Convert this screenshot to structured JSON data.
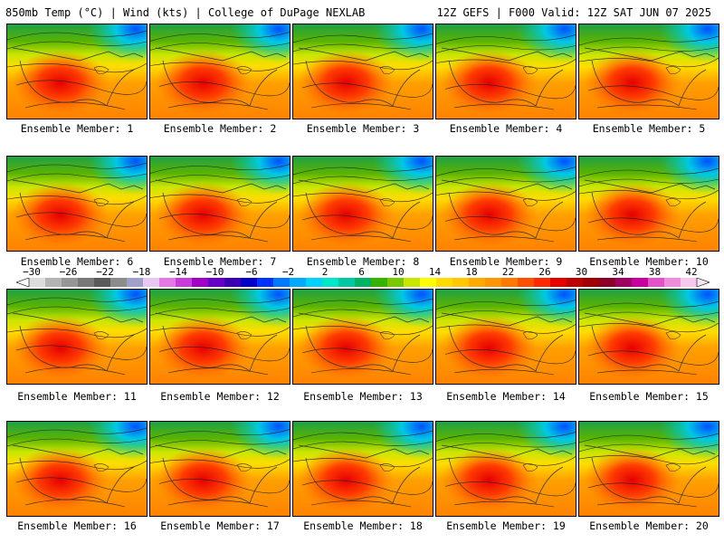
{
  "header": {
    "left_title": "850mb Temp (°C) | Wind (kts) | College of DuPage NEXLAB",
    "right_title": "12Z GEFS | F000 Valid: 12Z SAT JUN 07 2025"
  },
  "panels": [
    {
      "label": "Ensemble Member: 1"
    },
    {
      "label": "Ensemble Member: 2"
    },
    {
      "label": "Ensemble Member: 3"
    },
    {
      "label": "Ensemble Member: 4"
    },
    {
      "label": "Ensemble Member: 5"
    },
    {
      "label": "Ensemble Member: 6"
    },
    {
      "label": "Ensemble Member: 7"
    },
    {
      "label": "Ensemble Member: 8"
    },
    {
      "label": "Ensemble Member: 9"
    },
    {
      "label": "Ensemble Member: 10"
    },
    {
      "label": "Ensemble Member: 11"
    },
    {
      "label": "Ensemble Member: 12"
    },
    {
      "label": "Ensemble Member: 13"
    },
    {
      "label": "Ensemble Member: 14"
    },
    {
      "label": "Ensemble Member: 15"
    },
    {
      "label": "Ensemble Member: 16"
    },
    {
      "label": "Ensemble Member: 17"
    },
    {
      "label": "Ensemble Member: 18"
    },
    {
      "label": "Ensemble Member: 19"
    },
    {
      "label": "Ensemble Member: 20"
    }
  ],
  "colorbar": {
    "tick_labels": [
      "−30",
      "−26",
      "−22",
      "−18",
      "−14",
      "−10",
      "−6",
      "−2",
      "2",
      "6",
      "10",
      "14",
      "18",
      "22",
      "26",
      "30",
      "34",
      "38",
      "42"
    ],
    "colors": [
      "#dcdcdc",
      "#b4b4b4",
      "#969696",
      "#787878",
      "#5a5a5a",
      "#8c8c8c",
      "#a0a0c8",
      "#e6c8f0",
      "#e678e6",
      "#c83cdc",
      "#a000c8",
      "#6400c8",
      "#3c00b4",
      "#0000c8",
      "#0032ff",
      "#0078ff",
      "#00aaff",
      "#00d2ff",
      "#00e6c8",
      "#00c8a0",
      "#00b464",
      "#32b400",
      "#78c800",
      "#c8e600",
      "#ffff00",
      "#ffdc00",
      "#ffc800",
      "#ffaa00",
      "#ff9600",
      "#ff7800",
      "#ff5000",
      "#ff2800",
      "#e60000",
      "#be0000",
      "#a00000",
      "#8c0028",
      "#a00064",
      "#c800a0",
      "#e650c8",
      "#f08cdc",
      "#f5c8f0"
    ]
  }
}
